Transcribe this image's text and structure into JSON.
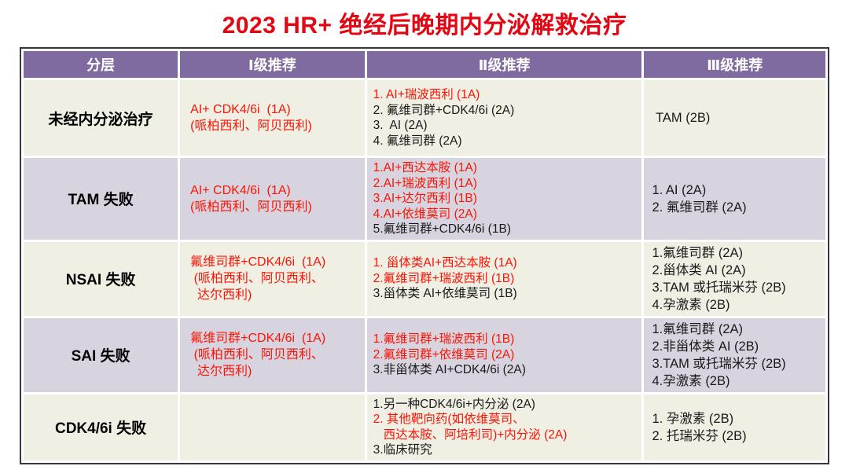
{
  "title": "2023 HR+ 绝经后晚期内分泌解救治疗",
  "colors": {
    "title_red": "#E30613",
    "body_red": "#F91505",
    "header_purple": "#7F6BA0",
    "row_lavender": "#D8D4DF",
    "row_ivory": "#EFEFE4",
    "outer_border": "#3A3542",
    "text_black": "#1a1a1a"
  },
  "table": {
    "headers": [
      "分层",
      "Ⅰ级推荐",
      "Ⅱ级推荐",
      "Ⅲ级推荐"
    ],
    "rows": [
      {
        "tier": "未经内分泌治疗",
        "level1": [
          {
            "text": "AI+ CDK4/6i  (1A)",
            "cls": "red"
          },
          {
            "text": "(哌柏西利、阿贝西利)",
            "cls": "red"
          }
        ],
        "level2": [
          {
            "text": "1. AI+瑞波西利 (1A)",
            "cls": "red"
          },
          {
            "text": "2. 氟维司群+CDK4/6i (2A)",
            "cls": "black"
          },
          {
            "text": "3.  AI (2A)",
            "cls": "black"
          },
          {
            "text": "4. 氟维司群 (2A)",
            "cls": "black"
          }
        ],
        "level3": [
          {
            "text": " TAM (2B)",
            "cls": "black"
          }
        ]
      },
      {
        "tier": "TAM 失败",
        "level1": [
          {
            "text": "AI+ CDK4/6i  (1A)",
            "cls": "red"
          },
          {
            "text": "(哌柏西利、阿贝西利)",
            "cls": "red"
          }
        ],
        "level2": [
          {
            "text": "1.AI+西达本胺 (1A)",
            "cls": "red"
          },
          {
            "text": "2.AI+瑞波西利 (1A)",
            "cls": "red"
          },
          {
            "text": "3.AI+达尔西利 (1B)",
            "cls": "red"
          },
          {
            "text": "4.AI+依维莫司 (2A)",
            "cls": "red"
          },
          {
            "text": "5.氟维司群+CDK4/6i (1B)",
            "cls": "black"
          }
        ],
        "level3": [
          {
            "text": "1. AI (2A)",
            "cls": "black"
          },
          {
            "text": "2. 氟维司群 (2A)",
            "cls": "black"
          }
        ]
      },
      {
        "tier": "NSAI 失败",
        "level1": [
          {
            "text": "氟维司群+CDK4/6i  (1A)",
            "cls": "red"
          },
          {
            "text": " (哌柏西利、阿贝西利、",
            "cls": "red"
          },
          {
            "text": "  达尔西利)",
            "cls": "red"
          }
        ],
        "level2": [
          {
            "text": "1. 甾体类AI+西达本胺 (1A)",
            "cls": "red"
          },
          {
            "text": "2.氟维司群+瑞波西利 (1B)",
            "cls": "red"
          },
          {
            "text": "3.甾体类 AI+依维莫司 (1B)",
            "cls": "black"
          }
        ],
        "level3": [
          {
            "text": "1.氟维司群 (2A)",
            "cls": "black"
          },
          {
            "text": "2.甾体类 AI (2A)",
            "cls": "black"
          },
          {
            "text": "3.TAM 或托瑞米芬 (2B)",
            "cls": "black"
          },
          {
            "text": "4.孕激素 (2B)",
            "cls": "black"
          }
        ]
      },
      {
        "tier": "SAI 失败",
        "level1": [
          {
            "text": "氟维司群+CDK4/6i  (1A)",
            "cls": "red"
          },
          {
            "text": " (哌柏西利、阿贝西利、",
            "cls": "red"
          },
          {
            "text": "  达尔西利)",
            "cls": "red"
          }
        ],
        "level2": [
          {
            "text": "1.氟维司群+瑞波西利 (1B)",
            "cls": "red"
          },
          {
            "text": "2.氟维司群+依维莫司 (2A)",
            "cls": "red"
          },
          {
            "text": "3.非甾体类 AI+CDK4/6i (2A)",
            "cls": "black"
          }
        ],
        "level3": [
          {
            "text": "1.氟维司群 (2A)",
            "cls": "black"
          },
          {
            "text": "2.非甾体类 AI (2B)",
            "cls": "black"
          },
          {
            "text": "3.TAM 或托瑞米芬 (2B)",
            "cls": "black"
          },
          {
            "text": "4.孕激素 (2B)",
            "cls": "black"
          }
        ]
      },
      {
        "tier": "CDK4/6i 失败",
        "level1": [],
        "level2": [
          {
            "text": "1.另一种CDK4/6i+内分泌 (2A)",
            "cls": "black"
          },
          {
            "text": "2. 其他靶向药(如依维莫司、",
            "cls": "red"
          },
          {
            "text": "   西达本胺、阿培利司)+内分泌 (2A)",
            "cls": "red"
          },
          {
            "text": "3.临床研究",
            "cls": "black"
          }
        ],
        "level3": [
          {
            "text": "1. 孕激素 (2B)",
            "cls": "black"
          },
          {
            "text": "2. 托瑞米芬 (2B)",
            "cls": "black"
          }
        ]
      }
    ]
  }
}
